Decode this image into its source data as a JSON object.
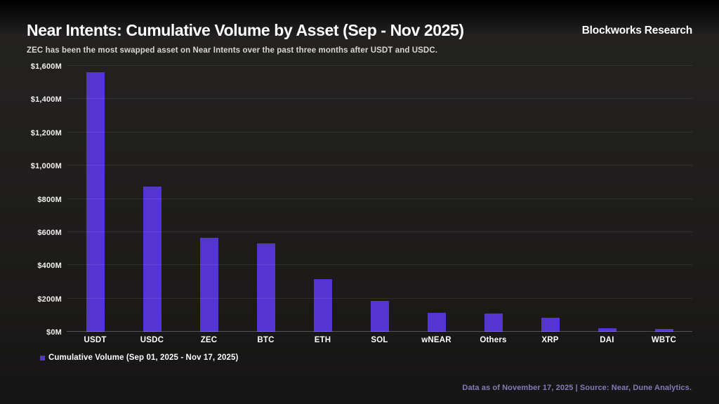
{
  "header": {
    "title": "Near Intents: Cumulative Volume by Asset (Sep - Nov 2025)",
    "brand": "Blockworks Research",
    "subtitle": "ZEC has been the most swapped asset on Near Intents over the past three months after USDT and USDC."
  },
  "chart_data": {
    "type": "bar",
    "title": "Near Intents: Cumulative Volume by Asset (Sep - Nov 2025)",
    "categories": [
      "USDT",
      "USDC",
      "ZEC",
      "BTC",
      "ETH",
      "SOL",
      "wNEAR",
      "Others",
      "XRP",
      "DAI",
      "WBTC"
    ],
    "values": [
      1560,
      875,
      565,
      530,
      315,
      185,
      115,
      108,
      83,
      22,
      18
    ],
    "unit": "USD millions",
    "xlabel": "",
    "ylabel": "",
    "ylim": [
      0,
      1600
    ],
    "yticks": [
      {
        "label": "$0M",
        "value": 0
      },
      {
        "label": "$200M",
        "value": 200
      },
      {
        "label": "$400M",
        "value": 400
      },
      {
        "label": "$600M",
        "value": 600
      },
      {
        "label": "$800M",
        "value": 800
      },
      {
        "label": "$1,000M",
        "value": 1000
      },
      {
        "label": "$1,200M",
        "value": 1200
      },
      {
        "label": "$1,400M",
        "value": 1400
      },
      {
        "label": "$1,600M",
        "value": 1600
      }
    ],
    "grid": true,
    "bar_color": "#5434d2",
    "legend_position": "bottom-left",
    "legend_entries": [
      "Cumulative Volume (Sep 01, 2025 - Nov 17, 2025)"
    ]
  },
  "legend": {
    "label": "Cumulative Volume (Sep 01, 2025 - Nov 17, 2025)",
    "marker_color": "#5434d2"
  },
  "footer": {
    "note": "Data as of November 17, 2025 | Source: Near, Dune Analytics."
  },
  "colors": {
    "background": "#1e1d1c",
    "bar": "#5434d2",
    "title": "#ffffff",
    "subtitle": "#d8d6d3",
    "footer_note": "#837bb8",
    "gridline": "rgba(255,255,255,0.09)"
  }
}
